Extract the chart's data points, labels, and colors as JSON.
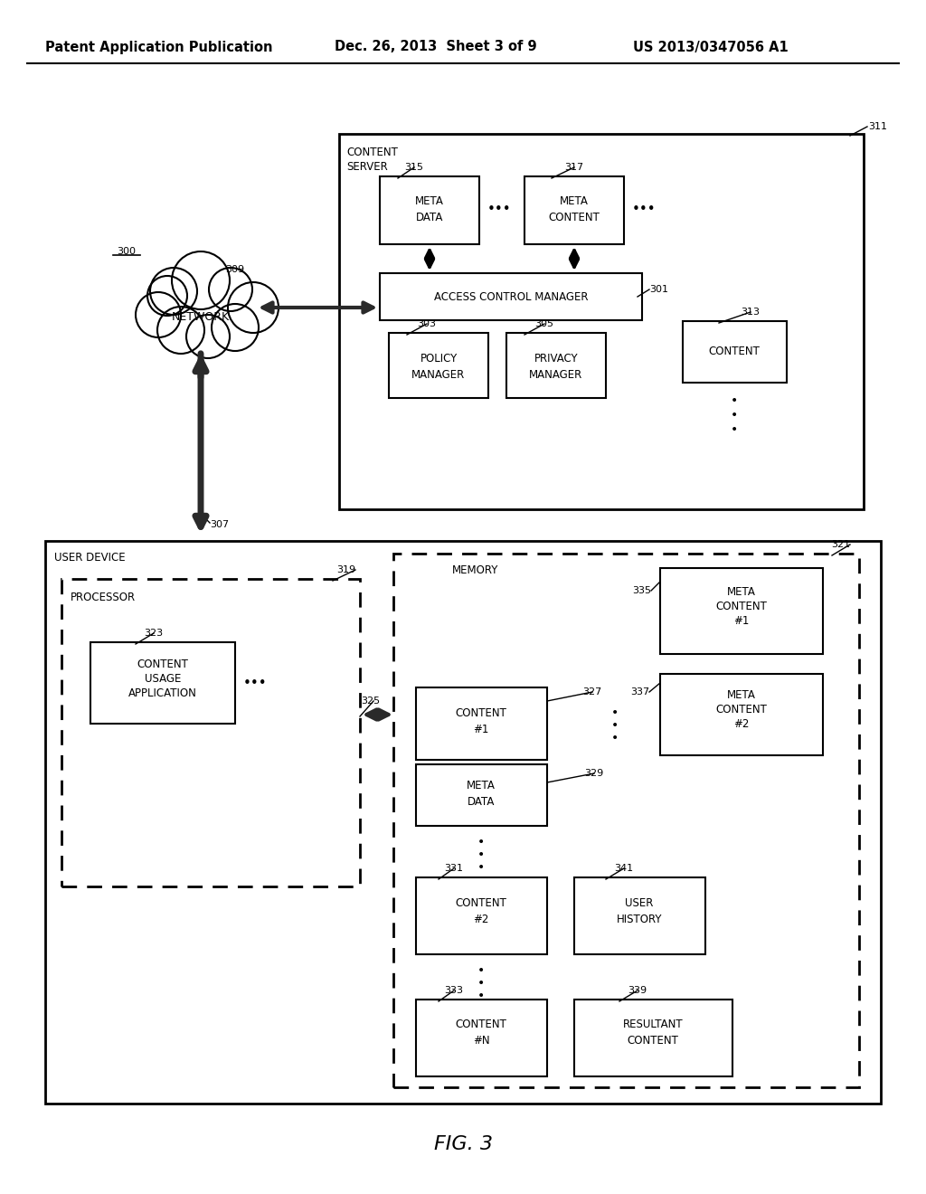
{
  "header_left": "Patent Application Publication",
  "header_mid": "Dec. 26, 2013  Sheet 3 of 9",
  "header_right": "US 2013/0347056 A1",
  "fig_label": "FIG. 3",
  "bg_color": "#ffffff"
}
